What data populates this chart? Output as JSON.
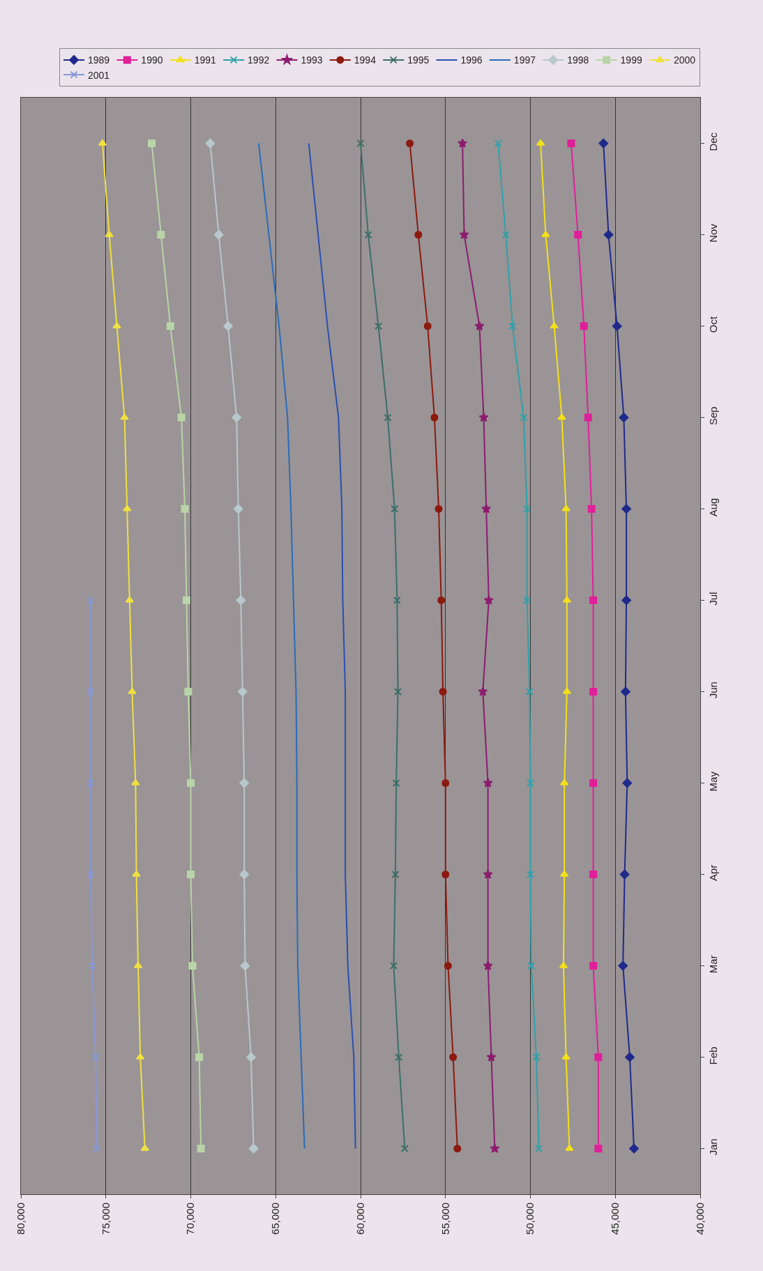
{
  "chart_data": {
    "type": "line",
    "orientation": "horizontal",
    "categories": [
      "Dec",
      "Nov",
      "Oct",
      "Sep",
      "Aug",
      "Jul",
      "Jun",
      "May",
      "Apr",
      "Mar",
      "Feb",
      "Jan"
    ],
    "xlim": [
      80000,
      40000
    ],
    "xticks": [
      {
        "value": 80000,
        "label": "80,000"
      },
      {
        "value": 75000,
        "label": "75,000"
      },
      {
        "value": 70000,
        "label": "70,000"
      },
      {
        "value": 65000,
        "label": "65,000"
      },
      {
        "value": 60000,
        "label": "60,000"
      },
      {
        "value": 55000,
        "label": "55,000"
      },
      {
        "value": 50000,
        "label": "50,000"
      },
      {
        "value": 45000,
        "label": "45,000"
      },
      {
        "value": 40000,
        "label": "40,000"
      }
    ],
    "grid": "x",
    "legend": "top right",
    "series": [
      {
        "name": "1989",
        "color": "#1f2a8c",
        "marker": "diamond",
        "values": [
          45700,
          45400,
          44900,
          44500,
          44350,
          44350,
          44400,
          44300,
          44450,
          44550,
          44150,
          43900
        ]
      },
      {
        "name": "1990",
        "color": "#e0209a",
        "marker": "square",
        "values": [
          47600,
          47200,
          46850,
          46600,
          46400,
          46300,
          46300,
          46300,
          46300,
          46300,
          46000,
          46000
        ]
      },
      {
        "name": "1991",
        "color": "#f2e01a",
        "marker": "triangle",
        "values": [
          49400,
          49100,
          48600,
          48150,
          47900,
          47850,
          47850,
          48000,
          48000,
          48050,
          47900,
          47700
        ]
      },
      {
        "name": "1992",
        "color": "#30a0a8",
        "marker": "cross",
        "values": [
          51900,
          51450,
          51050,
          50400,
          50200,
          50200,
          50050,
          50000,
          50000,
          49950,
          49650,
          49500
        ]
      },
      {
        "name": "1993",
        "color": "#8c1c6e",
        "marker": "star",
        "values": [
          54000,
          53900,
          53000,
          52750,
          52600,
          52450,
          52800,
          52500,
          52500,
          52500,
          52300,
          52100
        ]
      },
      {
        "name": "1994",
        "color": "#8c1a10",
        "marker": "circle",
        "values": [
          57100,
          56600,
          56050,
          55650,
          55400,
          55250,
          55150,
          55000,
          55000,
          54850,
          54550,
          54300
        ]
      },
      {
        "name": "1995",
        "color": "#3c6e68",
        "marker": "cross",
        "values": [
          60000,
          59550,
          58950,
          58400,
          58000,
          57850,
          57800,
          57900,
          57950,
          58050,
          57750,
          57400
        ]
      },
      {
        "name": "1996",
        "color": "#2a4eb0",
        "marker": "none",
        "values": [
          63050,
          62500,
          61950,
          61300,
          61100,
          61050,
          60900,
          60900,
          60900,
          60750,
          60400,
          60300
        ]
      },
      {
        "name": "1997",
        "color": "#2a6ab8",
        "marker": "none",
        "values": [
          66000,
          65400,
          64800,
          64300,
          64100,
          63950,
          63800,
          63750,
          63750,
          63700,
          63500,
          63300
        ]
      },
      {
        "name": "1998",
        "color": "#b8c8cc",
        "marker": "diamond",
        "values": [
          68850,
          68350,
          67800,
          67300,
          67200,
          67050,
          66950,
          66850,
          66850,
          66800,
          66450,
          66300
        ]
      },
      {
        "name": "1999",
        "color": "#b8d4a8",
        "marker": "square",
        "values": [
          72300,
          71750,
          71200,
          70550,
          70350,
          70250,
          70150,
          70000,
          70000,
          69900,
          69500,
          69400
        ]
      },
      {
        "name": "2000",
        "color": "#f0e040",
        "marker": "triangle",
        "values": [
          75200,
          74800,
          74350,
          73900,
          73750,
          73600,
          73450,
          73250,
          73200,
          73100,
          72970,
          72700
        ]
      },
      {
        "name": "2001",
        "color": "#8898d8",
        "marker": "cross",
        "values": [
          null,
          null,
          null,
          null,
          null,
          75900,
          75900,
          75900,
          75900,
          75800,
          75600,
          75530
        ]
      }
    ]
  }
}
